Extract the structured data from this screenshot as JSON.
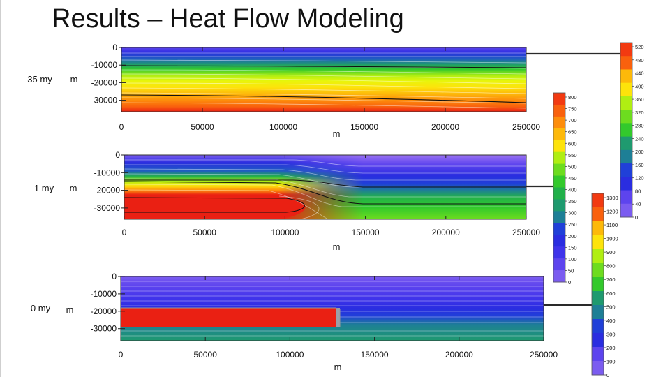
{
  "slide": {
    "title": "Results – Heat Flow Modeling"
  },
  "panels": [
    {
      "id": "p35",
      "time_label": "35 my",
      "y_unit": "m",
      "x_unit": "m",
      "y_ticks": [
        "0",
        "-10000",
        "-20000",
        "-30000"
      ],
      "x_ticks": [
        "0",
        "50000",
        "100000",
        "150000",
        "200000",
        "250000"
      ]
    },
    {
      "id": "p1",
      "time_label": "1 my",
      "y_unit": "m",
      "x_unit": "m",
      "y_ticks": [
        "0",
        "-10000",
        "-20000",
        "-30000"
      ],
      "x_ticks": [
        "0",
        "50000",
        "100000",
        "150000",
        "200000",
        "250000"
      ]
    },
    {
      "id": "p0",
      "time_label": "0 my",
      "y_unit": "m",
      "x_unit": "m",
      "y_ticks": [
        "0",
        "-10000",
        "-20000",
        "-30000"
      ],
      "x_ticks": [
        "0",
        "50000",
        "100000",
        "150000",
        "200000",
        "250000"
      ]
    }
  ],
  "colorbars": [
    {
      "id": "cb35",
      "ticks": [
        "520",
        "480",
        "440",
        "400",
        "360",
        "320",
        "280",
        "240",
        "200",
        "160",
        "120",
        "80",
        "40",
        "0"
      ]
    },
    {
      "id": "cb1",
      "ticks": [
        "800",
        "750",
        "700",
        "650",
        "600",
        "550",
        "500",
        "450",
        "400",
        "350",
        "300",
        "250",
        "200",
        "150",
        "100",
        "50",
        "0"
      ]
    },
    {
      "id": "cb0",
      "ticks": [
        "1300",
        "1200",
        "1100",
        "1000",
        "900",
        "800",
        "700",
        "600",
        "500",
        "400",
        "300",
        "200",
        "100",
        "0"
      ]
    }
  ],
  "palette": [
    "#9b72f2",
    "#7b5cf0",
    "#5d44ee",
    "#3f33ea",
    "#2a2de0",
    "#2040d8",
    "#1f5fbf",
    "#1e7f96",
    "#1f9a6f",
    "#22b04a",
    "#33c92c",
    "#6ddc1f",
    "#b0ee12",
    "#e8f50b",
    "#fde30b",
    "#fdb90a",
    "#fd8d0b",
    "#f9610d",
    "#f23a11",
    "#ea2013"
  ]
}
